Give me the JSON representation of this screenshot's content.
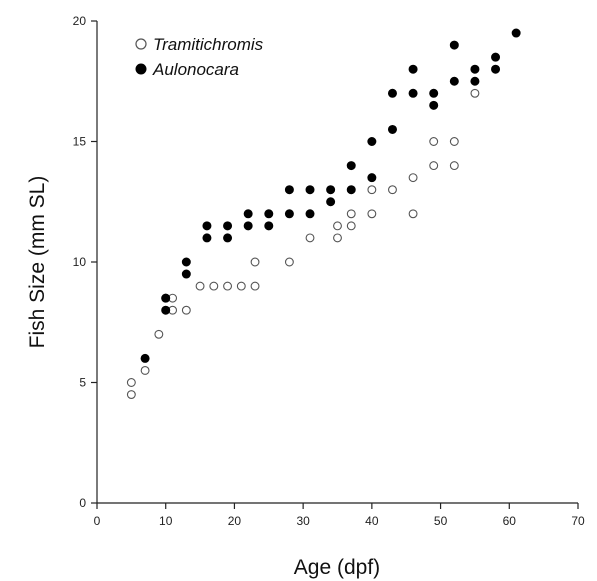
{
  "chart_data": {
    "type": "scatter",
    "title": "",
    "xlabel": "Age (dpf)",
    "ylabel": "Fish Size (mm SL)",
    "xlim": [
      0,
      70
    ],
    "ylim": [
      0,
      20
    ],
    "xticks": [
      "0",
      "10",
      "20",
      "30",
      "40",
      "50",
      "60",
      "70"
    ],
    "yticks": [
      "0",
      "5",
      "10",
      "15",
      "20"
    ],
    "grid": false,
    "legend_position": "top-left",
    "series": [
      {
        "name": "Tramitichromis",
        "marker": "open-circle",
        "color": "#555555",
        "points": [
          [
            5,
            5
          ],
          [
            5,
            4.5
          ],
          [
            7,
            5.5
          ],
          [
            9,
            7
          ],
          [
            10,
            8.5
          ],
          [
            11,
            8.5
          ],
          [
            11,
            8
          ],
          [
            13,
            8
          ],
          [
            15,
            9
          ],
          [
            17,
            9
          ],
          [
            19,
            9
          ],
          [
            21,
            9
          ],
          [
            23,
            9
          ],
          [
            23,
            10
          ],
          [
            28,
            10
          ],
          [
            31,
            11
          ],
          [
            35,
            11
          ],
          [
            35,
            11.5
          ],
          [
            37,
            11.5
          ],
          [
            37,
            12
          ],
          [
            40,
            12
          ],
          [
            40,
            13
          ],
          [
            43,
            13
          ],
          [
            46,
            12
          ],
          [
            46,
            13.5
          ],
          [
            49,
            14
          ],
          [
            49,
            15
          ],
          [
            52,
            14
          ],
          [
            52,
            15
          ],
          [
            55,
            17
          ]
        ]
      },
      {
        "name": "Aulonocara",
        "marker": "filled-circle",
        "color": "#000000",
        "points": [
          [
            7,
            6
          ],
          [
            10,
            8
          ],
          [
            10,
            8.5
          ],
          [
            13,
            9.5
          ],
          [
            13,
            10
          ],
          [
            16,
            11
          ],
          [
            16,
            11.5
          ],
          [
            19,
            11
          ],
          [
            19,
            11.5
          ],
          [
            22,
            11.5
          ],
          [
            22,
            12
          ],
          [
            25,
            11.5
          ],
          [
            25,
            12
          ],
          [
            28,
            12
          ],
          [
            28,
            13
          ],
          [
            31,
            12
          ],
          [
            31,
            13
          ],
          [
            34,
            12.5
          ],
          [
            34,
            13
          ],
          [
            37,
            13
          ],
          [
            37,
            14
          ],
          [
            40,
            13.5
          ],
          [
            40,
            15
          ],
          [
            43,
            15.5
          ],
          [
            43,
            17
          ],
          [
            46,
            17
          ],
          [
            46,
            18
          ],
          [
            49,
            16.5
          ],
          [
            49,
            17
          ],
          [
            52,
            17.5
          ],
          [
            52,
            19
          ],
          [
            55,
            17.5
          ],
          [
            55,
            18
          ],
          [
            58,
            18
          ],
          [
            58,
            18.5
          ],
          [
            61,
            19.5
          ]
        ]
      }
    ]
  }
}
